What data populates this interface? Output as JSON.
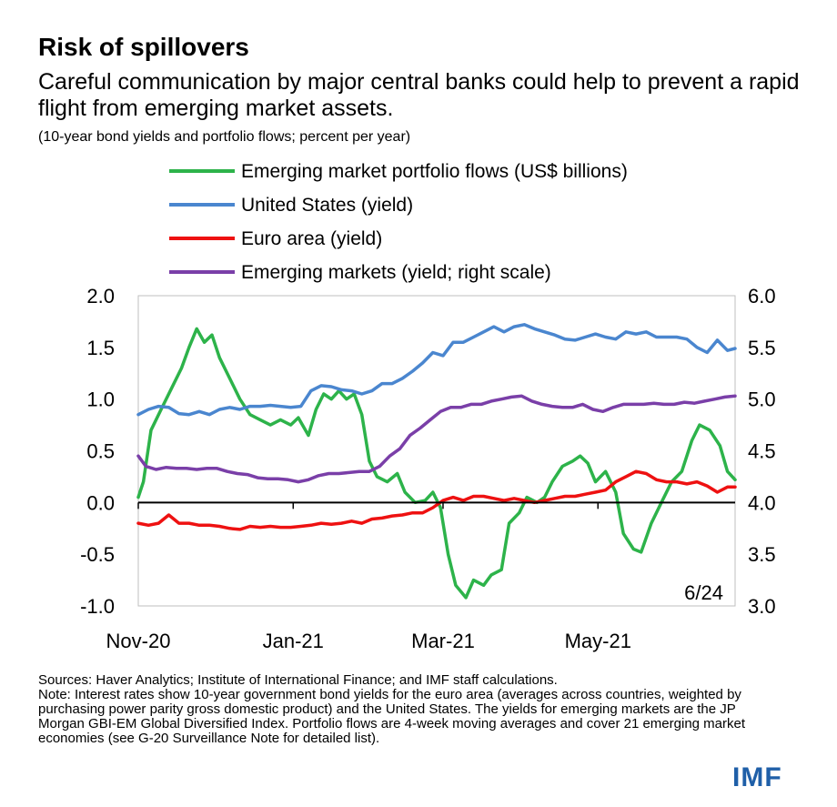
{
  "title": "Risk of spillovers",
  "subtitle": "Careful communication by major central banks could help to prevent a rapid flight from emerging market assets.",
  "units": "(10-year bond yields and portfolio flows; percent per year)",
  "sources": "Sources: Haver Analytics; Institute of International Finance; and IMF staff calculations.",
  "note": "Note: Interest rates show 10-year government bond yields for the euro area (averages across countries, weighted by purchasing power parity gross domestic product) and the United States. The yields for emerging markets are the JP Morgan GBI-EM Global Diversified Index. Portfolio flows are 4-week moving averages and cover 21 emerging market economies (see G-20 Surveillance Note for detailed list).",
  "logo": "IMF",
  "chart_data": {
    "type": "line",
    "date_annotation": "6/24",
    "x_tick_labels": [
      "Nov-20",
      "Jan-21",
      "Mar-21",
      "May-21"
    ],
    "x_ticks": [
      "2020-11-01",
      "2021-01-01",
      "2021-03-01",
      "2021-05-01"
    ],
    "x_range": [
      "2020-11-01",
      "2021-06-24"
    ],
    "y_left": {
      "range": [
        -1.0,
        2.0
      ],
      "ticks": [
        "2.0",
        "1.5",
        "1.0",
        "0.5",
        "0.0",
        "-0.5",
        "-1.0"
      ]
    },
    "y_right": {
      "range": [
        3.0,
        6.0
      ],
      "ticks": [
        "6.0",
        "5.5",
        "5.0",
        "4.5",
        "4.0",
        "3.5",
        "3.0"
      ]
    },
    "grid": false,
    "legend_position": "top",
    "series": [
      {
        "name": "Emerging market portfolio flows (US$ billions)",
        "color": "#2db34a",
        "axis": "left",
        "points": [
          [
            "2020-11-01",
            0.05
          ],
          [
            "2020-11-03",
            0.2
          ],
          [
            "2020-11-06",
            0.7
          ],
          [
            "2020-11-10",
            0.9
          ],
          [
            "2020-11-14",
            1.1
          ],
          [
            "2020-11-18",
            1.3
          ],
          [
            "2020-11-21",
            1.5
          ],
          [
            "2020-11-24",
            1.68
          ],
          [
            "2020-11-27",
            1.55
          ],
          [
            "2020-11-30",
            1.62
          ],
          [
            "2020-12-03",
            1.4
          ],
          [
            "2020-12-07",
            1.2
          ],
          [
            "2020-12-11",
            1.0
          ],
          [
            "2020-12-15",
            0.85
          ],
          [
            "2020-12-19",
            0.8
          ],
          [
            "2020-12-23",
            0.75
          ],
          [
            "2020-12-27",
            0.8
          ],
          [
            "2020-12-31",
            0.75
          ],
          [
            "2021-01-03",
            0.82
          ],
          [
            "2021-01-07",
            0.65
          ],
          [
            "2021-01-10",
            0.9
          ],
          [
            "2021-01-13",
            1.05
          ],
          [
            "2021-01-16",
            1.0
          ],
          [
            "2021-01-19",
            1.08
          ],
          [
            "2021-01-22",
            1.0
          ],
          [
            "2021-01-25",
            1.05
          ],
          [
            "2021-01-28",
            0.85
          ],
          [
            "2021-01-31",
            0.4
          ],
          [
            "2021-02-03",
            0.25
          ],
          [
            "2021-02-07",
            0.2
          ],
          [
            "2021-02-11",
            0.28
          ],
          [
            "2021-02-14",
            0.1
          ],
          [
            "2021-02-18",
            0.0
          ],
          [
            "2021-02-22",
            0.02
          ],
          [
            "2021-02-25",
            0.1
          ],
          [
            "2021-02-28",
            -0.05
          ],
          [
            "2021-03-03",
            -0.5
          ],
          [
            "2021-03-06",
            -0.8
          ],
          [
            "2021-03-10",
            -0.92
          ],
          [
            "2021-03-13",
            -0.75
          ],
          [
            "2021-03-17",
            -0.8
          ],
          [
            "2021-03-20",
            -0.7
          ],
          [
            "2021-03-24",
            -0.65
          ],
          [
            "2021-03-27",
            -0.2
          ],
          [
            "2021-03-31",
            -0.1
          ],
          [
            "2021-04-03",
            0.05
          ],
          [
            "2021-04-07",
            0.0
          ],
          [
            "2021-04-10",
            0.05
          ],
          [
            "2021-04-13",
            0.2
          ],
          [
            "2021-04-17",
            0.35
          ],
          [
            "2021-04-21",
            0.4
          ],
          [
            "2021-04-24",
            0.45
          ],
          [
            "2021-04-27",
            0.38
          ],
          [
            "2021-04-30",
            0.2
          ],
          [
            "2021-05-04",
            0.3
          ],
          [
            "2021-05-08",
            0.1
          ],
          [
            "2021-05-11",
            -0.3
          ],
          [
            "2021-05-15",
            -0.45
          ],
          [
            "2021-05-18",
            -0.48
          ],
          [
            "2021-05-22",
            -0.2
          ],
          [
            "2021-05-26",
            0.0
          ],
          [
            "2021-05-30",
            0.2
          ],
          [
            "2021-06-03",
            0.3
          ],
          [
            "2021-06-07",
            0.6
          ],
          [
            "2021-06-10",
            0.75
          ],
          [
            "2021-06-14",
            0.7
          ],
          [
            "2021-06-18",
            0.55
          ],
          [
            "2021-06-21",
            0.3
          ],
          [
            "2021-06-24",
            0.22
          ]
        ]
      },
      {
        "name": "United States (yield)",
        "color": "#4a86cf",
        "axis": "left",
        "points": [
          [
            "2020-11-01",
            0.85
          ],
          [
            "2020-11-05",
            0.9
          ],
          [
            "2020-11-09",
            0.93
          ],
          [
            "2020-11-13",
            0.92
          ],
          [
            "2020-11-17",
            0.86
          ],
          [
            "2020-11-21",
            0.85
          ],
          [
            "2020-11-25",
            0.88
          ],
          [
            "2020-11-29",
            0.85
          ],
          [
            "2020-12-03",
            0.9
          ],
          [
            "2020-12-07",
            0.92
          ],
          [
            "2020-12-11",
            0.9
          ],
          [
            "2020-12-15",
            0.93
          ],
          [
            "2020-12-19",
            0.93
          ],
          [
            "2020-12-23",
            0.94
          ],
          [
            "2020-12-27",
            0.93
          ],
          [
            "2020-12-31",
            0.92
          ],
          [
            "2021-01-04",
            0.93
          ],
          [
            "2021-01-08",
            1.08
          ],
          [
            "2021-01-12",
            1.13
          ],
          [
            "2021-01-16",
            1.12
          ],
          [
            "2021-01-20",
            1.09
          ],
          [
            "2021-01-24",
            1.08
          ],
          [
            "2021-01-28",
            1.05
          ],
          [
            "2021-02-01",
            1.08
          ],
          [
            "2021-02-05",
            1.15
          ],
          [
            "2021-02-09",
            1.15
          ],
          [
            "2021-02-13",
            1.2
          ],
          [
            "2021-02-17",
            1.27
          ],
          [
            "2021-02-21",
            1.35
          ],
          [
            "2021-02-25",
            1.45
          ],
          [
            "2021-03-01",
            1.42
          ],
          [
            "2021-03-05",
            1.55
          ],
          [
            "2021-03-09",
            1.55
          ],
          [
            "2021-03-13",
            1.6
          ],
          [
            "2021-03-17",
            1.65
          ],
          [
            "2021-03-21",
            1.7
          ],
          [
            "2021-03-25",
            1.65
          ],
          [
            "2021-03-29",
            1.7
          ],
          [
            "2021-04-02",
            1.72
          ],
          [
            "2021-04-06",
            1.68
          ],
          [
            "2021-04-10",
            1.65
          ],
          [
            "2021-04-14",
            1.62
          ],
          [
            "2021-04-18",
            1.58
          ],
          [
            "2021-04-22",
            1.57
          ],
          [
            "2021-04-26",
            1.6
          ],
          [
            "2021-04-30",
            1.63
          ],
          [
            "2021-05-04",
            1.6
          ],
          [
            "2021-05-08",
            1.58
          ],
          [
            "2021-05-12",
            1.65
          ],
          [
            "2021-05-16",
            1.63
          ],
          [
            "2021-05-20",
            1.65
          ],
          [
            "2021-05-24",
            1.6
          ],
          [
            "2021-05-28",
            1.6
          ],
          [
            "2021-06-01",
            1.6
          ],
          [
            "2021-06-05",
            1.58
          ],
          [
            "2021-06-09",
            1.5
          ],
          [
            "2021-06-13",
            1.45
          ],
          [
            "2021-06-17",
            1.57
          ],
          [
            "2021-06-21",
            1.47
          ],
          [
            "2021-06-24",
            1.49
          ]
        ]
      },
      {
        "name": "Euro area (yield)",
        "color": "#ee1111",
        "axis": "left",
        "points": [
          [
            "2020-11-01",
            -0.2
          ],
          [
            "2020-11-05",
            -0.22
          ],
          [
            "2020-11-09",
            -0.2
          ],
          [
            "2020-11-13",
            -0.12
          ],
          [
            "2020-11-17",
            -0.2
          ],
          [
            "2020-11-21",
            -0.2
          ],
          [
            "2020-11-25",
            -0.22
          ],
          [
            "2020-11-29",
            -0.22
          ],
          [
            "2020-12-03",
            -0.23
          ],
          [
            "2020-12-07",
            -0.25
          ],
          [
            "2020-12-11",
            -0.26
          ],
          [
            "2020-12-15",
            -0.23
          ],
          [
            "2020-12-19",
            -0.24
          ],
          [
            "2020-12-23",
            -0.23
          ],
          [
            "2020-12-27",
            -0.24
          ],
          [
            "2020-12-31",
            -0.24
          ],
          [
            "2021-01-04",
            -0.23
          ],
          [
            "2021-01-08",
            -0.22
          ],
          [
            "2021-01-12",
            -0.2
          ],
          [
            "2021-01-16",
            -0.21
          ],
          [
            "2021-01-20",
            -0.2
          ],
          [
            "2021-01-24",
            -0.18
          ],
          [
            "2021-01-28",
            -0.2
          ],
          [
            "2021-02-01",
            -0.16
          ],
          [
            "2021-02-05",
            -0.15
          ],
          [
            "2021-02-09",
            -0.13
          ],
          [
            "2021-02-13",
            -0.12
          ],
          [
            "2021-02-17",
            -0.1
          ],
          [
            "2021-02-21",
            -0.1
          ],
          [
            "2021-02-25",
            -0.05
          ],
          [
            "2021-03-01",
            0.02
          ],
          [
            "2021-03-05",
            0.05
          ],
          [
            "2021-03-09",
            0.02
          ],
          [
            "2021-03-13",
            0.06
          ],
          [
            "2021-03-17",
            0.06
          ],
          [
            "2021-03-21",
            0.04
          ],
          [
            "2021-03-25",
            0.02
          ],
          [
            "2021-03-29",
            0.04
          ],
          [
            "2021-04-02",
            0.02
          ],
          [
            "2021-04-06",
            0.0
          ],
          [
            "2021-04-10",
            0.02
          ],
          [
            "2021-04-14",
            0.04
          ],
          [
            "2021-04-18",
            0.06
          ],
          [
            "2021-04-22",
            0.06
          ],
          [
            "2021-04-26",
            0.08
          ],
          [
            "2021-04-30",
            0.1
          ],
          [
            "2021-05-04",
            0.12
          ],
          [
            "2021-05-08",
            0.2
          ],
          [
            "2021-05-12",
            0.25
          ],
          [
            "2021-05-16",
            0.3
          ],
          [
            "2021-05-20",
            0.28
          ],
          [
            "2021-05-24",
            0.22
          ],
          [
            "2021-05-28",
            0.2
          ],
          [
            "2021-06-01",
            0.2
          ],
          [
            "2021-06-05",
            0.18
          ],
          [
            "2021-06-09",
            0.2
          ],
          [
            "2021-06-13",
            0.16
          ],
          [
            "2021-06-17",
            0.1
          ],
          [
            "2021-06-21",
            0.15
          ],
          [
            "2021-06-24",
            0.15
          ]
        ]
      },
      {
        "name": "Emerging markets (yield; right scale)",
        "color": "#7a3fa8",
        "axis": "right",
        "points": [
          [
            "2020-11-01",
            4.45
          ],
          [
            "2020-11-04",
            4.35
          ],
          [
            "2020-11-08",
            4.32
          ],
          [
            "2020-11-12",
            4.34
          ],
          [
            "2020-11-16",
            4.33
          ],
          [
            "2020-11-20",
            4.33
          ],
          [
            "2020-11-24",
            4.32
          ],
          [
            "2020-11-28",
            4.33
          ],
          [
            "2020-12-02",
            4.33
          ],
          [
            "2020-12-06",
            4.3
          ],
          [
            "2020-12-10",
            4.28
          ],
          [
            "2020-12-14",
            4.27
          ],
          [
            "2020-12-18",
            4.24
          ],
          [
            "2020-12-22",
            4.23
          ],
          [
            "2020-12-26",
            4.23
          ],
          [
            "2020-12-30",
            4.22
          ],
          [
            "2021-01-03",
            4.2
          ],
          [
            "2021-01-07",
            4.22
          ],
          [
            "2021-01-11",
            4.26
          ],
          [
            "2021-01-15",
            4.28
          ],
          [
            "2021-01-19",
            4.28
          ],
          [
            "2021-01-23",
            4.29
          ],
          [
            "2021-01-27",
            4.3
          ],
          [
            "2021-01-31",
            4.3
          ],
          [
            "2021-02-04",
            4.35
          ],
          [
            "2021-02-08",
            4.45
          ],
          [
            "2021-02-12",
            4.52
          ],
          [
            "2021-02-16",
            4.65
          ],
          [
            "2021-02-20",
            4.72
          ],
          [
            "2021-02-24",
            4.8
          ],
          [
            "2021-02-28",
            4.88
          ],
          [
            "2021-03-04",
            4.92
          ],
          [
            "2021-03-08",
            4.92
          ],
          [
            "2021-03-12",
            4.95
          ],
          [
            "2021-03-16",
            4.95
          ],
          [
            "2021-03-20",
            4.98
          ],
          [
            "2021-03-24",
            5.0
          ],
          [
            "2021-03-28",
            5.02
          ],
          [
            "2021-04-01",
            5.03
          ],
          [
            "2021-04-05",
            4.98
          ],
          [
            "2021-04-09",
            4.95
          ],
          [
            "2021-04-13",
            4.93
          ],
          [
            "2021-04-17",
            4.92
          ],
          [
            "2021-04-21",
            4.92
          ],
          [
            "2021-04-25",
            4.95
          ],
          [
            "2021-04-29",
            4.9
          ],
          [
            "2021-05-03",
            4.88
          ],
          [
            "2021-05-07",
            4.92
          ],
          [
            "2021-05-11",
            4.95
          ],
          [
            "2021-05-15",
            4.95
          ],
          [
            "2021-05-19",
            4.95
          ],
          [
            "2021-05-23",
            4.96
          ],
          [
            "2021-05-27",
            4.95
          ],
          [
            "2021-05-31",
            4.95
          ],
          [
            "2021-06-04",
            4.97
          ],
          [
            "2021-06-08",
            4.96
          ],
          [
            "2021-06-12",
            4.98
          ],
          [
            "2021-06-16",
            5.0
          ],
          [
            "2021-06-20",
            5.02
          ],
          [
            "2021-06-24",
            5.03
          ]
        ]
      }
    ]
  }
}
